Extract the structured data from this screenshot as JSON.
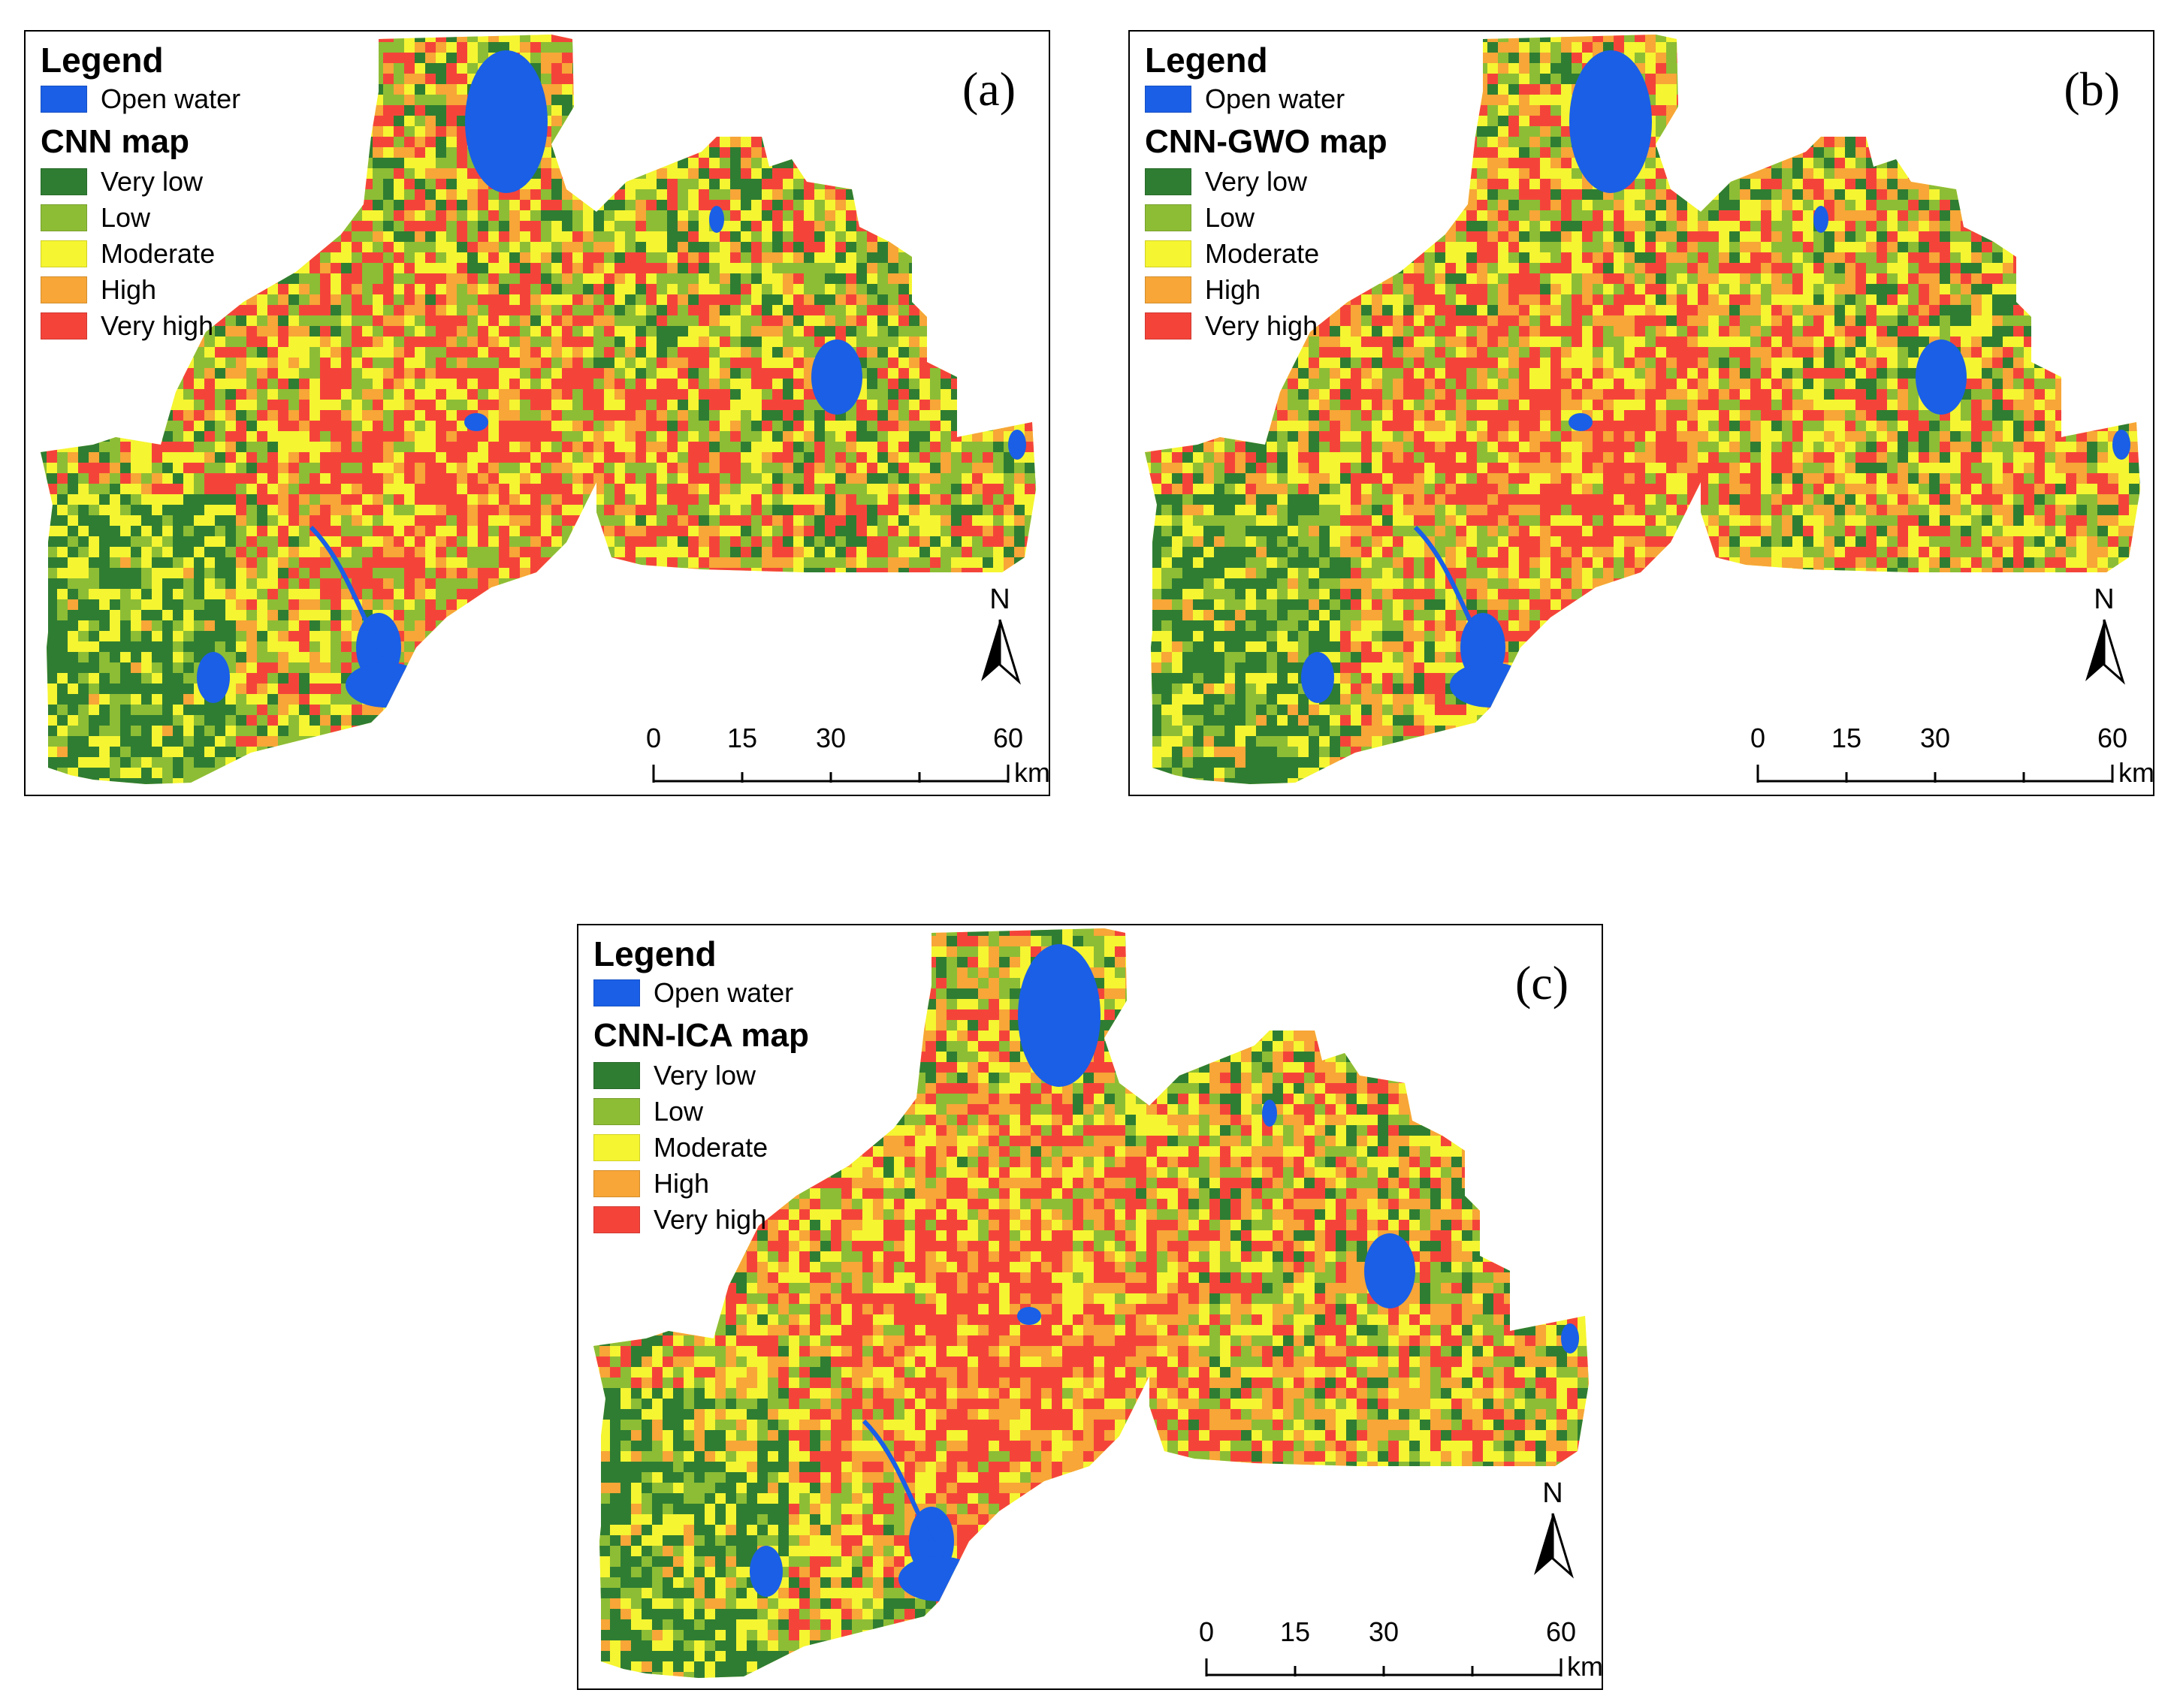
{
  "legend_title": "Legend",
  "water": {
    "label": "Open water",
    "color": "#1a5fe6"
  },
  "classes": [
    {
      "label": "Very low",
      "color": "#2f7d32"
    },
    {
      "label": "Low",
      "color": "#8dbd35"
    },
    {
      "label": "Moderate",
      "color": "#f5f531"
    },
    {
      "label": "High",
      "color": "#f7a637"
    },
    {
      "label": "Very high",
      "color": "#f4443a"
    }
  ],
  "panels": [
    {
      "id": "a",
      "map_title": "CNN map",
      "label": "(a)"
    },
    {
      "id": "b",
      "map_title": "CNN-GWO map",
      "label": "(b)"
    },
    {
      "id": "c",
      "map_title": "CNN-ICA map",
      "label": "(c)"
    }
  ],
  "north_label": "N",
  "scale": {
    "ticks": [
      "0",
      "15",
      "30",
      "60"
    ],
    "unit": "km"
  }
}
